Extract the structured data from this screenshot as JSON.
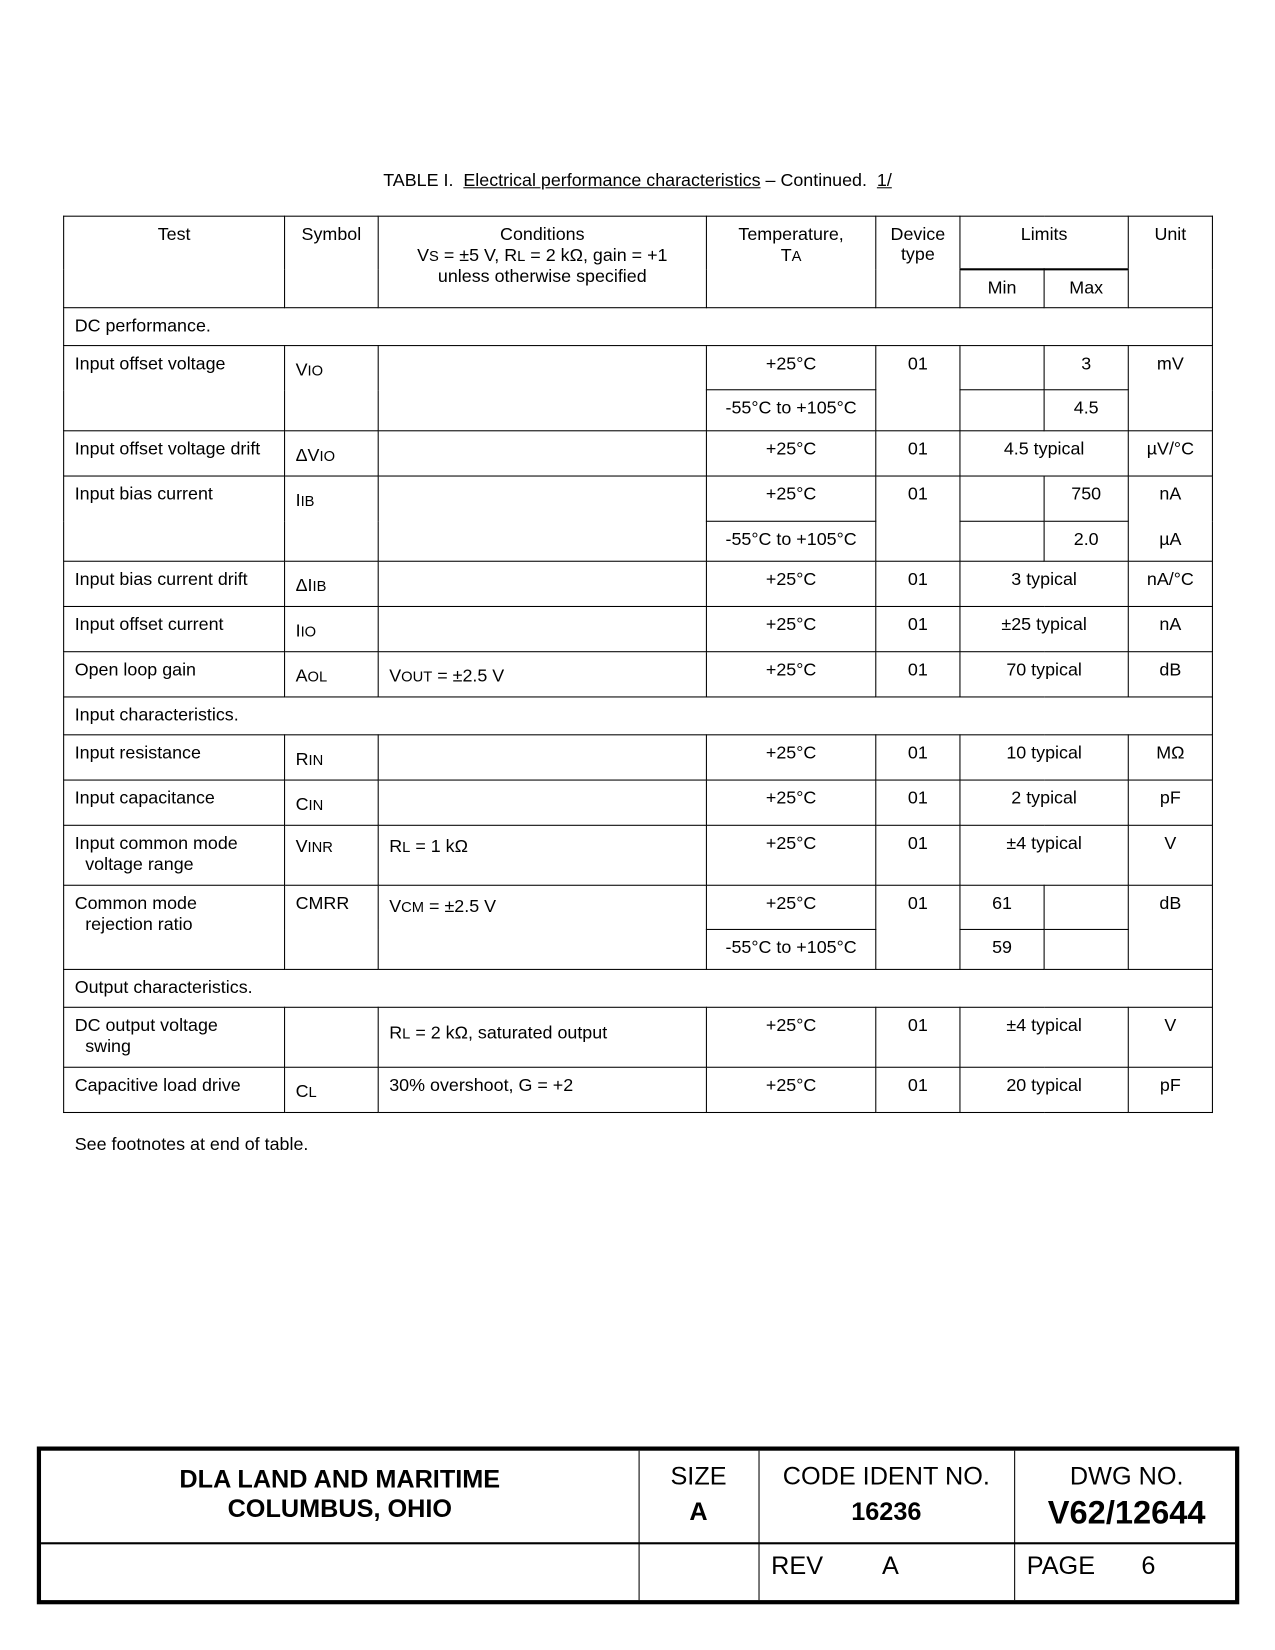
{
  "caption": {
    "prefix": "TABLE I.",
    "title": "Electrical performance characteristics",
    "suffix": "– Continued.",
    "footnote_ref": "1/"
  },
  "header": {
    "test": "Test",
    "symbol": "Symbol",
    "conditions_line1": "Conditions",
    "conditions_line2": {
      "vs": "V",
      "vs_sub": "S",
      "a": " = ±5 V, R",
      "rl_sub": "L",
      "b": " = 2 kΩ, gain = +1"
    },
    "conditions_line3": "unless otherwise specified",
    "temperature": "Temperature,",
    "temperature_sym": "T",
    "temperature_sub": "A",
    "device_type_1": "Device",
    "device_type_2": "type",
    "limits": "Limits",
    "min": "Min",
    "max": "Max",
    "unit": "Unit"
  },
  "sections": {
    "dc": "DC performance.",
    "input": "Input characteristics.",
    "output": "Output characteristics."
  },
  "rows": {
    "vio": {
      "test": "Input offset voltage",
      "sym": "V",
      "sub": "IO",
      "temp1": "+25°C",
      "temp2": "-55°C to +105°C",
      "device": "01",
      "max1": "3",
      "max2": "4.5",
      "unit": "mV"
    },
    "dvio": {
      "test": "Input offset voltage drift",
      "sym": "ΔV",
      "sub": "IO",
      "temp": "+25°C",
      "device": "01",
      "limit": "4.5 typical",
      "unit": "µV/°C"
    },
    "iib": {
      "test": "Input bias current",
      "sym": "I",
      "sub": "IB",
      "temp1": "+25°C",
      "temp2": "-55°C to +105°C",
      "device": "01",
      "max1": "750",
      "max2": "2.0",
      "unit1": "nA",
      "unit2": "µA"
    },
    "diib": {
      "test": "Input bias current drift",
      "sym": "ΔI",
      "sub": "IB",
      "temp": "+25°C",
      "device": "01",
      "limit": "3 typical",
      "unit": "nA/°C"
    },
    "iio": {
      "test": "Input offset current",
      "sym": "I",
      "sub": "IO",
      "temp": "+25°C",
      "device": "01",
      "limit": "±25 typical",
      "unit": "nA"
    },
    "aol": {
      "test": "Open loop gain",
      "sym": "A",
      "sub": "OL",
      "cond_main": "V",
      "cond_sub": "OUT",
      "cond_rest": " = ±2.5 V",
      "temp": "+25°C",
      "device": "01",
      "limit": "70 typical",
      "unit": "dB"
    },
    "rin": {
      "test": "Input resistance",
      "sym": "R",
      "sub": "IN",
      "temp": "+25°C",
      "device": "01",
      "limit": "10 typical",
      "unit": "MΩ"
    },
    "cin": {
      "test": "Input capacitance",
      "sym": "C",
      "sub": "IN",
      "temp": "+25°C",
      "device": "01",
      "limit": "2 typical",
      "unit": "pF"
    },
    "vinr": {
      "test1": "Input common mode",
      "test2": "voltage range",
      "sym": "V",
      "sub": "INR",
      "cond_main": "R",
      "cond_sub": "L",
      "cond_rest": " = 1 kΩ",
      "temp": "+25°C",
      "device": "01",
      "limit": "±4 typical",
      "unit": "V"
    },
    "cmrr": {
      "test1": "Common mode",
      "test2": "rejection ratio",
      "sym": "CMRR",
      "cond_main": "V",
      "cond_sub": "CM",
      "cond_rest": " = ±2.5 V",
      "temp1": "+25°C",
      "temp2": "-55°C to +105°C",
      "device": "01",
      "min1": "61",
      "min2": "59",
      "unit": "dB"
    },
    "swing": {
      "test1": "DC output voltage",
      "test2": "swing",
      "cond_main": "R",
      "cond_sub": "L",
      "cond_rest": " = 2 kΩ, saturated output",
      "temp": "+25°C",
      "device": "01",
      "limit": "±4 typical",
      "unit": "V"
    },
    "cl": {
      "test": "Capacitive load drive",
      "sym": "C",
      "sub": "L",
      "cond": "30% overshoot, G = +2",
      "temp": "+25°C",
      "device": "01",
      "limit": "20 typical",
      "unit": "pF"
    }
  },
  "note": "See footnotes at end of table.",
  "footer": {
    "org1": "DLA LAND AND MARITIME",
    "org2": "COLUMBUS, OHIO",
    "size_label": "SIZE",
    "size": "A",
    "code_label": "CODE IDENT NO.",
    "code": "16236",
    "dwg_label": "DWG NO.",
    "dwg": "V62/12644",
    "rev_label": "REV",
    "rev": "A",
    "page_label": "PAGE",
    "page": "6"
  }
}
